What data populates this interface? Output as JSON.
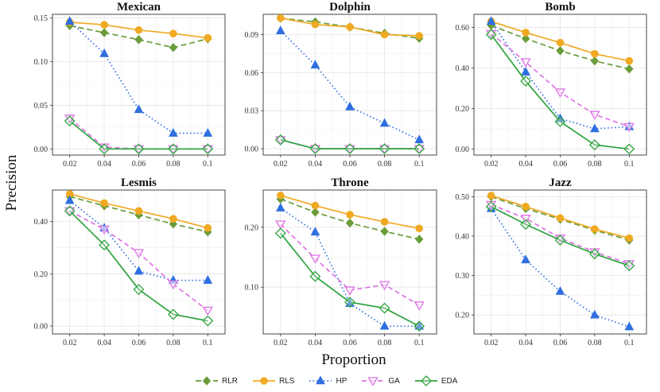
{
  "figure": {
    "ylabel": "Precision",
    "xlabel": "Proportion"
  },
  "colors": {
    "RLR": "#6a9c3a",
    "RLS": "#f0a922",
    "HP": "#2f6fe0",
    "GA": "#de73e6",
    "EDA": "#2ea33d"
  },
  "chart_data": [
    {
      "type": "line",
      "title": "Mexican",
      "x": [
        0.02,
        0.04,
        0.06,
        0.08,
        0.1
      ],
      "xticks": [
        "0.02",
        "0.04",
        "0.06",
        "0.08",
        "0.1"
      ],
      "ylim": [
        -0.007,
        0.154
      ],
      "yticks": [
        0.0,
        0.05,
        0.1,
        0.15
      ],
      "ytick_labels": [
        "0.00",
        "0.05",
        "0.10",
        "0.15"
      ],
      "series": [
        {
          "name": "RLR",
          "values": [
            0.141,
            0.133,
            0.125,
            0.116,
            0.126
          ]
        },
        {
          "name": "RLS",
          "values": [
            0.145,
            0.142,
            0.136,
            0.132,
            0.127
          ]
        },
        {
          "name": "HP",
          "values": [
            0.146,
            0.109,
            0.045,
            0.018,
            0.018
          ]
        },
        {
          "name": "GA",
          "values": [
            0.035,
            0.002,
            0.0,
            0.0,
            0.0
          ]
        },
        {
          "name": "EDA",
          "values": [
            0.032,
            0.0,
            0.0,
            0.0,
            0.0
          ]
        }
      ]
    },
    {
      "type": "line",
      "title": "Dolphin",
      "x": [
        0.02,
        0.04,
        0.06,
        0.08,
        0.1
      ],
      "xticks": [
        "0.02",
        "0.04",
        "0.06",
        "0.08",
        "0.1"
      ],
      "ylim": [
        -0.005,
        0.106
      ],
      "yticks": [
        0.0,
        0.03,
        0.06,
        0.09
      ],
      "ytick_labels": [
        "0.00",
        "0.03",
        "0.06",
        "0.09"
      ],
      "series": [
        {
          "name": "RLR",
          "values": [
            0.103,
            0.1,
            0.096,
            0.091,
            0.087
          ]
        },
        {
          "name": "RLS",
          "values": [
            0.103,
            0.098,
            0.096,
            0.09,
            0.089
          ]
        },
        {
          "name": "HP",
          "values": [
            0.093,
            0.066,
            0.033,
            0.02,
            0.007
          ]
        },
        {
          "name": "GA",
          "values": [
            0.007,
            0.0,
            0.0,
            0.0,
            0.0
          ]
        },
        {
          "name": "EDA",
          "values": [
            0.007,
            0.0,
            0.0,
            0.0,
            0.0
          ]
        }
      ]
    },
    {
      "type": "line",
      "title": "Bomb",
      "x": [
        0.02,
        0.04,
        0.06,
        0.08,
        0.1
      ],
      "xticks": [
        "0.02",
        "0.04",
        "0.06",
        "0.08",
        "0.1"
      ],
      "ylim": [
        -0.03,
        0.665
      ],
      "yticks": [
        0.0,
        0.2,
        0.4,
        0.6
      ],
      "ytick_labels": [
        "0.00",
        "0.20",
        "0.40",
        "0.60"
      ],
      "series": [
        {
          "name": "RLR",
          "values": [
            0.61,
            0.545,
            0.485,
            0.435,
            0.395
          ]
        },
        {
          "name": "RLS",
          "values": [
            0.63,
            0.575,
            0.525,
            0.47,
            0.435
          ]
        },
        {
          "name": "HP",
          "values": [
            0.63,
            0.38,
            0.15,
            0.1,
            0.11
          ]
        },
        {
          "name": "GA",
          "values": [
            0.57,
            0.43,
            0.28,
            0.17,
            0.11
          ]
        },
        {
          "name": "EDA",
          "values": [
            0.565,
            0.335,
            0.135,
            0.02,
            0.0
          ]
        }
      ]
    },
    {
      "type": "line",
      "title": "Lesmis",
      "x": [
        0.02,
        0.04,
        0.06,
        0.08,
        0.1
      ],
      "xticks": [
        "0.02",
        "0.04",
        "0.06",
        "0.08",
        "0.1"
      ],
      "ylim": [
        -0.03,
        0.52
      ],
      "yticks": [
        0.0,
        0.2,
        0.4
      ],
      "ytick_labels": [
        "0.00",
        "0.20",
        "0.40"
      ],
      "series": [
        {
          "name": "RLR",
          "values": [
            0.495,
            0.46,
            0.425,
            0.39,
            0.36
          ]
        },
        {
          "name": "RLS",
          "values": [
            0.505,
            0.47,
            0.44,
            0.41,
            0.375
          ]
        },
        {
          "name": "HP",
          "values": [
            0.48,
            0.375,
            0.21,
            0.175,
            0.175
          ]
        },
        {
          "name": "GA",
          "values": [
            0.44,
            0.37,
            0.28,
            0.16,
            0.06
          ]
        },
        {
          "name": "EDA",
          "values": [
            0.44,
            0.31,
            0.14,
            0.045,
            0.02
          ]
        }
      ]
    },
    {
      "type": "line",
      "title": "Throne",
      "x": [
        0.02,
        0.04,
        0.06,
        0.08,
        0.1
      ],
      "xticks": [
        "0.02",
        "0.04",
        "0.06",
        "0.08",
        "0.1"
      ],
      "ylim": [
        0.022,
        0.262
      ],
      "yticks": [
        0.1,
        0.2
      ],
      "ytick_labels": [
        "0.10",
        "0.20"
      ],
      "series": [
        {
          "name": "RLR",
          "values": [
            0.247,
            0.225,
            0.207,
            0.193,
            0.18
          ]
        },
        {
          "name": "RLS",
          "values": [
            0.253,
            0.236,
            0.221,
            0.209,
            0.198
          ]
        },
        {
          "name": "HP",
          "values": [
            0.232,
            0.192,
            0.073,
            0.035,
            0.035
          ]
        },
        {
          "name": "GA",
          "values": [
            0.205,
            0.148,
            0.095,
            0.104,
            0.07
          ]
        },
        {
          "name": "EDA",
          "values": [
            0.19,
            0.118,
            0.075,
            0.065,
            0.035
          ]
        }
      ]
    },
    {
      "type": "line",
      "title": "Jazz",
      "x": [
        0.02,
        0.04,
        0.06,
        0.08,
        0.1
      ],
      "xticks": [
        "0.02",
        "0.04",
        "0.06",
        "0.08",
        "0.1"
      ],
      "ylim": [
        0.152,
        0.517
      ],
      "yticks": [
        0.2,
        0.3,
        0.4,
        0.5
      ],
      "ytick_labels": [
        "0.20",
        "0.30",
        "0.40",
        "0.50"
      ],
      "series": [
        {
          "name": "RLR",
          "values": [
            0.5,
            0.47,
            0.443,
            0.415,
            0.39
          ]
        },
        {
          "name": "RLS",
          "values": [
            0.503,
            0.475,
            0.446,
            0.418,
            0.395
          ]
        },
        {
          "name": "HP",
          "values": [
            0.47,
            0.34,
            0.26,
            0.2,
            0.17
          ]
        },
        {
          "name": "GA",
          "values": [
            0.48,
            0.445,
            0.395,
            0.36,
            0.33
          ]
        },
        {
          "name": "EDA",
          "values": [
            0.475,
            0.43,
            0.39,
            0.355,
            0.325
          ]
        }
      ]
    }
  ],
  "legend": [
    {
      "name": "RLR",
      "label": "RLR"
    },
    {
      "name": "RLS",
      "label": "RLS"
    },
    {
      "name": "HP",
      "label": "HP"
    },
    {
      "name": "GA",
      "label": "GA"
    },
    {
      "name": "EDA",
      "label": "EDA"
    }
  ]
}
